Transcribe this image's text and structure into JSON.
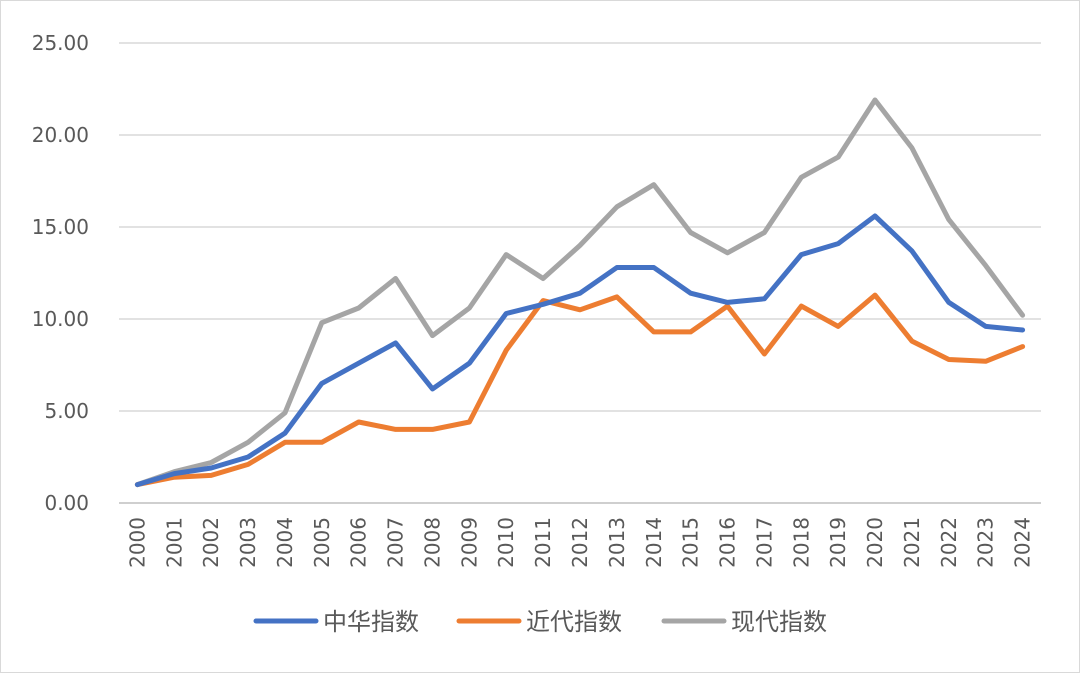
{
  "chart_data": {
    "type": "line",
    "title": "",
    "xlabel": "",
    "ylabel": "",
    "categories": [
      "2000",
      "2001",
      "2002",
      "2003",
      "2004",
      "2005",
      "2006",
      "2007",
      "2008",
      "2009",
      "2010",
      "2011",
      "2012",
      "2013",
      "2014",
      "2015",
      "2016",
      "2017",
      "2018",
      "2019",
      "2020",
      "2021",
      "2022",
      "2023",
      "2024"
    ],
    "ylim": [
      0,
      25
    ],
    "yticks": [
      "0.00",
      "5.00",
      "10.00",
      "15.00",
      "20.00",
      "25.00"
    ],
    "grid": true,
    "legend_position": "bottom",
    "series": [
      {
        "name": "中华指数",
        "color": "#4472C4",
        "values": [
          1.0,
          1.6,
          1.9,
          2.5,
          3.8,
          6.5,
          7.6,
          8.7,
          6.2,
          7.6,
          10.3,
          10.8,
          11.4,
          12.8,
          12.8,
          11.4,
          10.9,
          11.1,
          13.5,
          14.1,
          15.6,
          13.7,
          10.9,
          9.6,
          9.4
        ]
      },
      {
        "name": "近代指数",
        "color": "#ED7D31",
        "values": [
          1.0,
          1.4,
          1.5,
          2.1,
          3.3,
          3.3,
          4.4,
          4.0,
          4.0,
          4.4,
          8.3,
          11.0,
          10.5,
          11.2,
          9.3,
          9.3,
          10.7,
          8.1,
          10.7,
          9.6,
          11.3,
          8.8,
          7.8,
          7.7,
          8.5
        ]
      },
      {
        "name": "现代指数",
        "color": "#A5A5A5",
        "values": [
          1.0,
          1.7,
          2.2,
          3.3,
          4.9,
          9.8,
          10.6,
          12.2,
          9.1,
          10.6,
          13.5,
          12.2,
          14.0,
          16.1,
          17.3,
          14.7,
          13.6,
          14.7,
          17.7,
          18.8,
          21.9,
          19.3,
          15.4,
          12.9,
          10.2
        ]
      }
    ]
  }
}
